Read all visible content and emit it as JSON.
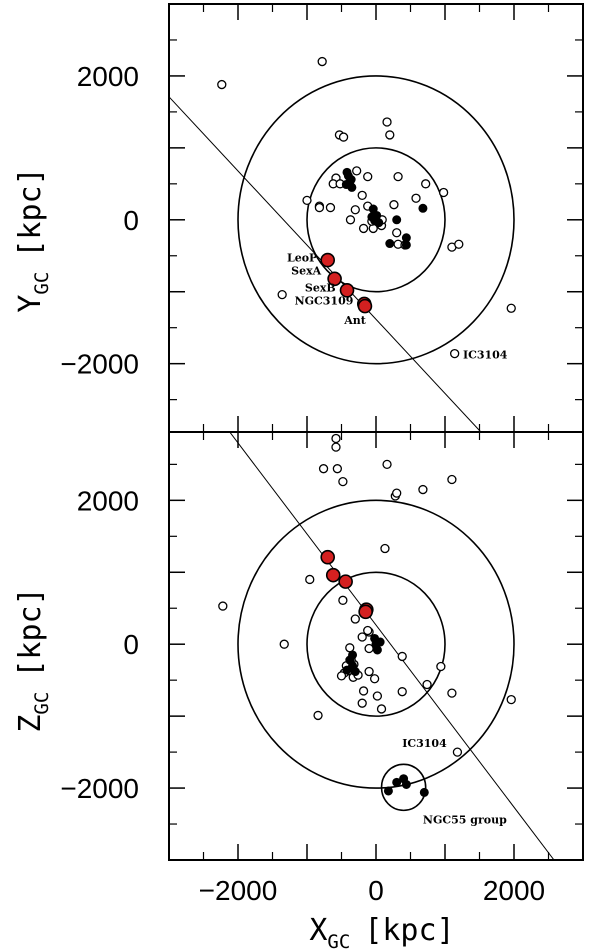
{
  "chart_data": [
    {
      "type": "scatter",
      "panel": "top",
      "xlabel": "",
      "ylabel": "Y",
      "ylabel_sub": "GC",
      "ylabel_unit": "[kpc]",
      "xlim": [
        -3000,
        3000
      ],
      "ylim": [
        -2950,
        3000
      ],
      "yticks": [
        "2000",
        "0",
        "−2000"
      ],
      "ytick_values": [
        2000,
        0,
        -2000
      ],
      "circles": [
        {
          "cx": 0,
          "cy": 0,
          "r": 1000
        },
        {
          "cx": 0,
          "cy": 0,
          "r": 2000
        }
      ],
      "line": {
        "x1": -3000,
        "y1": 1710,
        "x2": 1520,
        "y2": -2950
      },
      "open_points": [
        [
          -2235,
          1880
        ],
        [
          -780,
          2200
        ],
        [
          -530,
          1180
        ],
        [
          -470,
          1150
        ],
        [
          160,
          1360
        ],
        [
          200,
          1180
        ],
        [
          -1000,
          270
        ],
        [
          -820,
          190
        ],
        [
          -580,
          580
        ],
        [
          -620,
          500
        ],
        [
          -520,
          500
        ],
        [
          -280,
          680
        ],
        [
          -120,
          600
        ],
        [
          -200,
          340
        ],
        [
          -120,
          190
        ],
        [
          -300,
          140
        ],
        [
          -180,
          -120
        ],
        [
          -40,
          -120
        ],
        [
          80,
          -80
        ],
        [
          300,
          -180
        ],
        [
          320,
          -340
        ],
        [
          420,
          -350
        ],
        [
          260,
          210
        ],
        [
          320,
          600
        ],
        [
          580,
          300
        ],
        [
          720,
          500
        ],
        [
          980,
          380
        ],
        [
          1100,
          -380
        ],
        [
          1200,
          -340
        ],
        [
          -1360,
          -1040
        ],
        [
          1960,
          -1230
        ],
        [
          1140,
          -1860
        ],
        [
          -820,
          170
        ],
        [
          -660,
          170
        ],
        [
          90,
          0
        ],
        [
          -370,
          0
        ],
        [
          -60,
          -20
        ]
      ],
      "filled_points": [
        [
          -420,
          660
        ],
        [
          -400,
          610
        ],
        [
          -360,
          560
        ],
        [
          -380,
          520
        ],
        [
          -430,
          490
        ],
        [
          -350,
          450
        ],
        [
          -60,
          40
        ],
        [
          -20,
          -10
        ],
        [
          10,
          60
        ],
        [
          -40,
          150
        ],
        [
          40,
          -40
        ],
        [
          300,
          0
        ],
        [
          440,
          -250
        ],
        [
          440,
          -350
        ],
        [
          200,
          -330
        ],
        [
          680,
          160
        ]
      ],
      "highlighted_points": [
        [
          -700,
          -560
        ],
        [
          -600,
          -820
        ],
        [
          -420,
          -980
        ],
        [
          -170,
          -1170
        ],
        [
          -160,
          -1200
        ]
      ],
      "annotations": [
        {
          "text": "LeoP",
          "x": -1290,
          "y": -580
        },
        {
          "text": "SexA",
          "x": -1230,
          "y": -760
        },
        {
          "text": "SexB",
          "x": -1030,
          "y": -1000
        },
        {
          "text": "NGC3109",
          "x": -1180,
          "y": -1180
        },
        {
          "text": "Ant",
          "x": -460,
          "y": -1450
        },
        {
          "text": "IC3104",
          "x": 1260,
          "y": -1930
        }
      ]
    },
    {
      "type": "scatter",
      "panel": "bottom",
      "xlabel": "X",
      "xlabel_sub": "GC",
      "xlabel_unit": "[kpc]",
      "ylabel": "Z",
      "ylabel_sub": "GC",
      "ylabel_unit": "[kpc]",
      "xlim": [
        -3000,
        3000
      ],
      "ylim": [
        -3000,
        2950
      ],
      "xticks": [
        "−2000",
        "0",
        "2000"
      ],
      "xtick_values": [
        -2000,
        0,
        2000
      ],
      "yticks": [
        "2000",
        "0",
        "−2000"
      ],
      "ytick_values": [
        2000,
        0,
        -2000
      ],
      "circles": [
        {
          "cx": 0,
          "cy": 0,
          "r": 1000
        },
        {
          "cx": 0,
          "cy": 0,
          "r": 2000
        },
        {
          "cx": 400,
          "cy": -1990,
          "r": 320
        }
      ],
      "line": {
        "x1": -2120,
        "y1": 2950,
        "x2": 2580,
        "y2": -3000
      },
      "open_points": [
        [
          -580,
          2860
        ],
        [
          -580,
          2740
        ],
        [
          -760,
          2440
        ],
        [
          -560,
          2440
        ],
        [
          -480,
          2260
        ],
        [
          160,
          2500
        ],
        [
          280,
          2060
        ],
        [
          300,
          2100
        ],
        [
          680,
          2150
        ],
        [
          1100,
          2290
        ],
        [
          130,
          1330
        ],
        [
          -960,
          900
        ],
        [
          -480,
          610
        ],
        [
          -300,
          350
        ],
        [
          -100,
          170
        ],
        [
          -200,
          100
        ],
        [
          -320,
          -280
        ],
        [
          -380,
          -330
        ],
        [
          -400,
          -370
        ],
        [
          -460,
          -400
        ],
        [
          -500,
          -440
        ],
        [
          -330,
          -460
        ],
        [
          -260,
          -430
        ],
        [
          -100,
          -380
        ],
        [
          -20,
          -480
        ],
        [
          -100,
          -60
        ],
        [
          -180,
          -650
        ],
        [
          20,
          -720
        ],
        [
          -200,
          -820
        ],
        [
          80,
          -900
        ],
        [
          380,
          -660
        ],
        [
          740,
          -560
        ],
        [
          940,
          -310
        ],
        [
          1100,
          -680
        ],
        [
          1960,
          -770
        ],
        [
          -840,
          -990
        ],
        [
          -2220,
          530
        ],
        [
          -1330,
          0
        ],
        [
          -120,
          190
        ],
        [
          380,
          -170
        ],
        [
          -380,
          -50
        ],
        [
          -360,
          -220
        ],
        [
          -430,
          -300
        ],
        [
          1180,
          -1500
        ]
      ],
      "filled_points": [
        [
          -380,
          -220
        ],
        [
          -340,
          -300
        ],
        [
          -300,
          -380
        ],
        [
          -420,
          -360
        ],
        [
          -340,
          -150
        ],
        [
          -20,
          80
        ],
        [
          0,
          0
        ],
        [
          60,
          30
        ],
        [
          20,
          -80
        ],
        [
          300,
          -1920
        ],
        [
          400,
          -1870
        ],
        [
          440,
          -1950
        ],
        [
          180,
          -2040
        ],
        [
          700,
          -2060
        ]
      ],
      "highlighted_points": [
        [
          -700,
          1210
        ],
        [
          -620,
          960
        ],
        [
          -440,
          870
        ],
        [
          -140,
          480
        ],
        [
          -150,
          450
        ]
      ],
      "annotations": [
        {
          "text": "IC3104",
          "x": 380,
          "y": -1430
        },
        {
          "text": "NGC55 group",
          "x": 680,
          "y": -2490
        }
      ]
    }
  ]
}
